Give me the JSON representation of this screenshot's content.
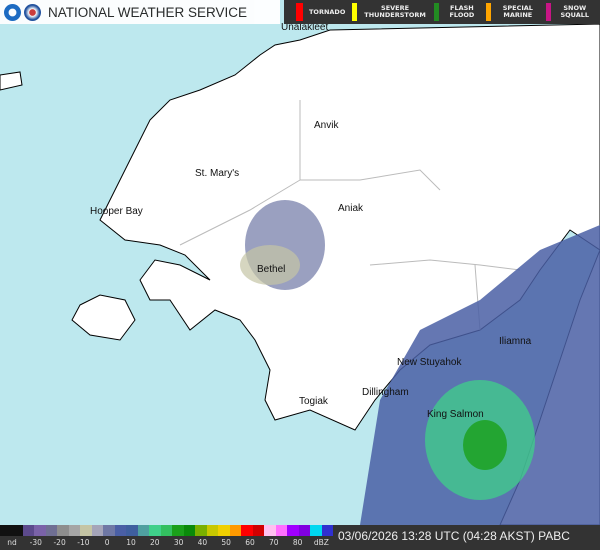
{
  "header": {
    "title": "NATIONAL WEATHER SERVICE"
  },
  "legend": [
    {
      "label": "TORNADO",
      "color": "#ff0000"
    },
    {
      "label": "SEVERE THUNDERSTORM",
      "color": "#ffff00"
    },
    {
      "label": "FLASH FLOOD",
      "color": "#228b22"
    },
    {
      "label": "SPECIAL MARINE",
      "color": "#ffa500"
    },
    {
      "label": "SNOW SQUALL",
      "color": "#c71585"
    }
  ],
  "places": [
    "Unalakleet",
    "Anvik",
    "St. Mary's",
    "Hooper Bay",
    "Aniak",
    "Bethel",
    "Iliamna",
    "New Stuyahok",
    "Dillingham",
    "Togiak",
    "King Salmon"
  ],
  "colorbar": {
    "ticks": [
      "nd",
      "-30",
      "-20",
      "-10",
      "0",
      "10",
      "20",
      "30",
      "40",
      "50",
      "60",
      "70",
      "80",
      "dBZ"
    ],
    "colors": [
      "#111",
      "#111",
      "#5c4a8c",
      "#7a62a8",
      "#6f6f93",
      "#8e8e8e",
      "#a5a5a5",
      "#c5c5a5",
      "#a5a5b9",
      "#6f78a5",
      "#4a5fa5",
      "#3f5f9f",
      "#4fa0a0",
      "#3fd08a",
      "#33c060",
      "#1aa01a",
      "#0a8a0a",
      "#7ab000",
      "#c8c800",
      "#f0d000",
      "#ff9a00",
      "#ff0000",
      "#d00000",
      "#ffc0f0",
      "#ff70ff",
      "#a000ff",
      "#8000e0",
      "#00d8f0",
      "#3030d0"
    ]
  },
  "status": "03/06/2026 13:28 UTC (04:28 AKST)  PABC"
}
